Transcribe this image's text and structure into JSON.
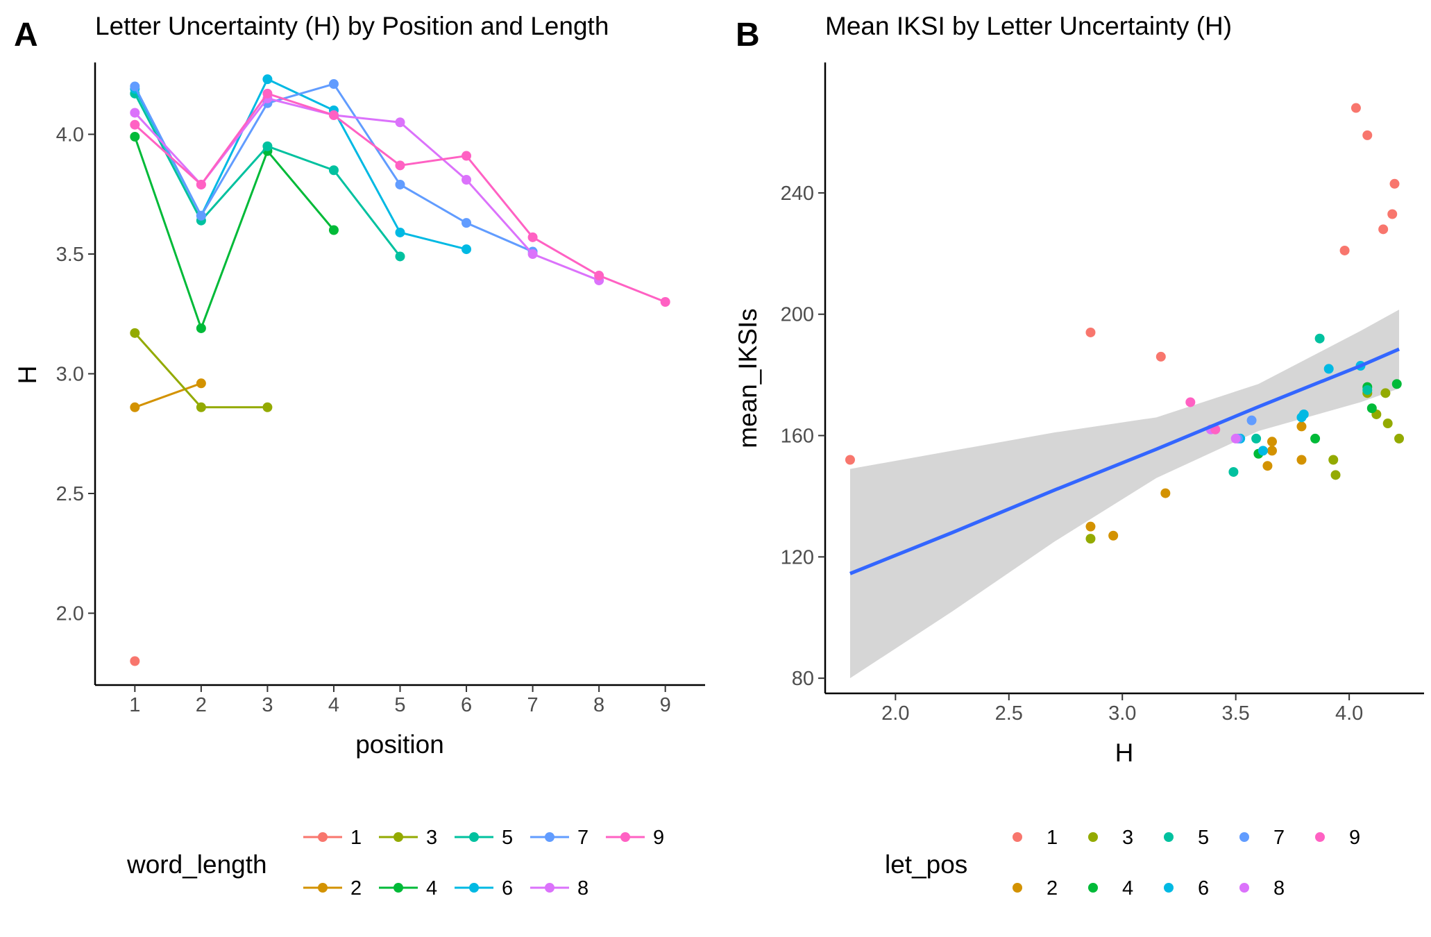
{
  "chart_data": [
    {
      "panel": "A",
      "type": "line",
      "title": "Letter Uncertainty (H) by Position and Length",
      "xlabel": "position",
      "ylabel": "H",
      "xlim": [
        0.4,
        9.6
      ],
      "ylim": [
        1.7,
        4.3
      ],
      "xticks": [
        "1",
        "2",
        "3",
        "4",
        "5",
        "6",
        "7",
        "8",
        "9"
      ],
      "yticks": [
        "2.0",
        "2.5",
        "3.0",
        "3.5",
        "4.0"
      ],
      "grid": false,
      "legend": {
        "title": "word_length",
        "placement": "bottom"
      },
      "series": [
        {
          "name": "1",
          "color": "#F8766D",
          "x": [
            1
          ],
          "y": [
            1.8
          ]
        },
        {
          "name": "2",
          "color": "#D39200",
          "x": [
            1,
            2
          ],
          "y": [
            2.86,
            2.96
          ]
        },
        {
          "name": "3",
          "color": "#93AA00",
          "x": [
            1,
            2,
            3
          ],
          "y": [
            3.17,
            2.86,
            2.86
          ]
        },
        {
          "name": "4",
          "color": "#00BA38",
          "x": [
            1,
            2,
            3,
            4
          ],
          "y": [
            3.99,
            3.19,
            3.93,
            3.6
          ]
        },
        {
          "name": "5",
          "color": "#00C19F",
          "x": [
            1,
            2,
            3,
            4,
            5
          ],
          "y": [
            4.17,
            3.64,
            3.95,
            3.85,
            3.49
          ]
        },
        {
          "name": "6",
          "color": "#00B9E3",
          "x": [
            1,
            2,
            3,
            4,
            5,
            6
          ],
          "y": [
            4.19,
            3.66,
            4.23,
            4.1,
            3.59,
            3.52
          ]
        },
        {
          "name": "7",
          "color": "#619CFF",
          "x": [
            1,
            2,
            3,
            4,
            5,
            6,
            7
          ],
          "y": [
            4.2,
            3.66,
            4.13,
            4.21,
            3.79,
            3.63,
            3.51
          ]
        },
        {
          "name": "8",
          "color": "#DB72FB",
          "x": [
            1,
            2,
            3,
            4,
            5,
            6,
            7,
            8
          ],
          "y": [
            4.09,
            3.79,
            4.15,
            4.08,
            4.05,
            3.81,
            3.5,
            3.39
          ]
        },
        {
          "name": "9",
          "color": "#FF61C3",
          "x": [
            1,
            2,
            3,
            4,
            5,
            6,
            7,
            8,
            9
          ],
          "y": [
            4.04,
            3.79,
            4.17,
            4.08,
            3.87,
            3.91,
            3.57,
            3.41,
            3.3
          ]
        }
      ]
    },
    {
      "panel": "B",
      "type": "scatter",
      "title": "Mean IKSI by Letter Uncertainty (H)",
      "xlabel": "H",
      "ylabel": "mean_IKSIs",
      "xlim": [
        1.69,
        4.33
      ],
      "ylim": [
        75,
        283
      ],
      "xticks": [
        "2.0",
        "2.5",
        "3.0",
        "3.5",
        "4.0"
      ],
      "yticks": [
        "80",
        "120",
        "160",
        "200",
        "240"
      ],
      "grid": false,
      "legend": {
        "title": "let_pos",
        "placement": "bottom"
      },
      "fit": {
        "method": "linear",
        "color": "#3366FF",
        "x": [
          1.8,
          2.25,
          2.7,
          3.15,
          3.6,
          4.05,
          4.22
        ],
        "y": [
          114.5,
          128.0,
          142.0,
          155.5,
          169.5,
          183.0,
          188.5
        ],
        "ci_lower": [
          80.0,
          102.0,
          125.0,
          146.0,
          161.5,
          171.0,
          175.5
        ],
        "ci_upper": [
          149.0,
          155.0,
          161.0,
          166.0,
          177.0,
          194.5,
          201.5
        ]
      },
      "series": [
        {
          "name": "1",
          "color": "#F8766D",
          "points": [
            [
              1.8,
              152
            ],
            [
              2.86,
              194
            ],
            [
              3.17,
              186
            ],
            [
              3.98,
              221
            ],
            [
              4.03,
              268
            ],
            [
              4.08,
              259
            ],
            [
              4.15,
              228
            ],
            [
              4.19,
              233
            ],
            [
              4.2,
              243
            ]
          ]
        },
        {
          "name": "2",
          "color": "#D39200",
          "points": [
            [
              2.86,
              130
            ],
            [
              2.96,
              127
            ],
            [
              3.19,
              141
            ],
            [
              3.64,
              150
            ],
            [
              3.66,
              155
            ],
            [
              3.79,
              152
            ],
            [
              3.79,
              163
            ],
            [
              3.66,
              158
            ]
          ]
        },
        {
          "name": "3",
          "color": "#93AA00",
          "points": [
            [
              2.86,
              126
            ],
            [
              3.93,
              152
            ],
            [
              3.94,
              147
            ],
            [
              4.08,
              174
            ],
            [
              4.12,
              167
            ],
            [
              4.16,
              174
            ],
            [
              4.17,
              164
            ],
            [
              4.22,
              159
            ]
          ]
        },
        {
          "name": "4",
          "color": "#00BA38",
          "points": [
            [
              3.6,
              154
            ],
            [
              3.85,
              159
            ],
            [
              4.08,
              176
            ],
            [
              4.1,
              169
            ],
            [
              4.21,
              177
            ]
          ]
        },
        {
          "name": "5",
          "color": "#00C19F",
          "points": [
            [
              3.49,
              148
            ],
            [
              3.59,
              159
            ],
            [
              3.87,
              192
            ],
            [
              4.08,
              175
            ]
          ]
        },
        {
          "name": "6",
          "color": "#00B9E3",
          "points": [
            [
              3.52,
              159
            ],
            [
              3.62,
              155
            ],
            [
              3.79,
              166
            ],
            [
              3.8,
              167
            ],
            [
              3.91,
              182
            ],
            [
              4.05,
              183
            ]
          ]
        },
        {
          "name": "7",
          "color": "#619CFF",
          "points": [
            [
              3.51,
              159
            ],
            [
              3.57,
              165
            ]
          ]
        },
        {
          "name": "8",
          "color": "#DB72FB",
          "points": [
            [
              3.39,
              162
            ],
            [
              3.5,
              159
            ]
          ]
        },
        {
          "name": "9",
          "color": "#FF61C3",
          "points": [
            [
              3.3,
              171
            ],
            [
              3.41,
              162
            ]
          ]
        }
      ]
    }
  ]
}
